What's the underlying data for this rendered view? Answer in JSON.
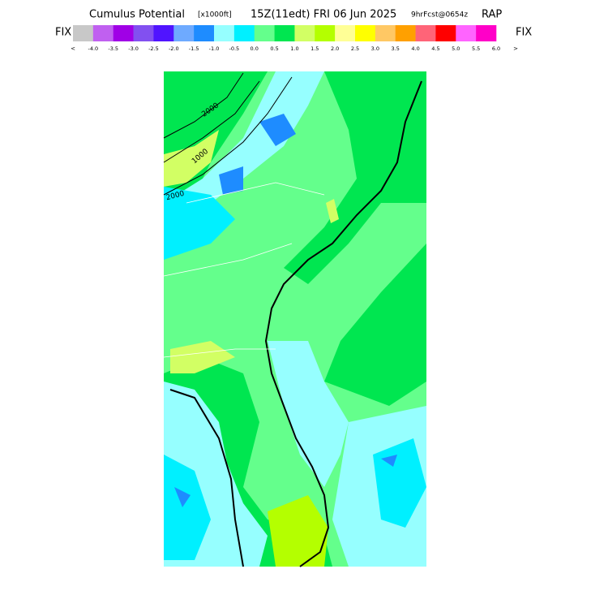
{
  "header": {
    "title_parts": [
      "Cumulus Potential",
      "[x1000ft]",
      "15Z(11edt) FRI 06 Jun 2025",
      "9hrFcst@0654z",
      "RAP"
    ]
  },
  "colorbar": {
    "left_label": "FIX",
    "right_label": "FIX",
    "colors": [
      "#c8c8c8",
      "#c060f0",
      "#a000e6",
      "#8250f0",
      "#5014ff",
      "#6eaaff",
      "#1e8cff",
      "#96ffff",
      "#00f0ff",
      "#64ff8c",
      "#00e650",
      "#d2ff64",
      "#b4ff00",
      "#ffff96",
      "#ffff00",
      "#ffc864",
      "#ffa000",
      "#ff6478",
      "#ff0000",
      "#ff64ff",
      "#ff00c8"
    ],
    "low_label": "<",
    "high_label": ">",
    "tick_labels": [
      "-4.0",
      "-3.5",
      "-3.0",
      "-2.5",
      "-2.0",
      "-1.5",
      "-1.0",
      "-0.5",
      "0.0",
      "0.5",
      "1.0",
      "1.5",
      "2.0",
      "2.5",
      "3.0",
      "3.5",
      "4.0",
      "4.5",
      "5.0",
      "5.5",
      "6.0"
    ]
  },
  "map": {
    "contour_labels": [
      "2000",
      "1000",
      "2000"
    ]
  }
}
